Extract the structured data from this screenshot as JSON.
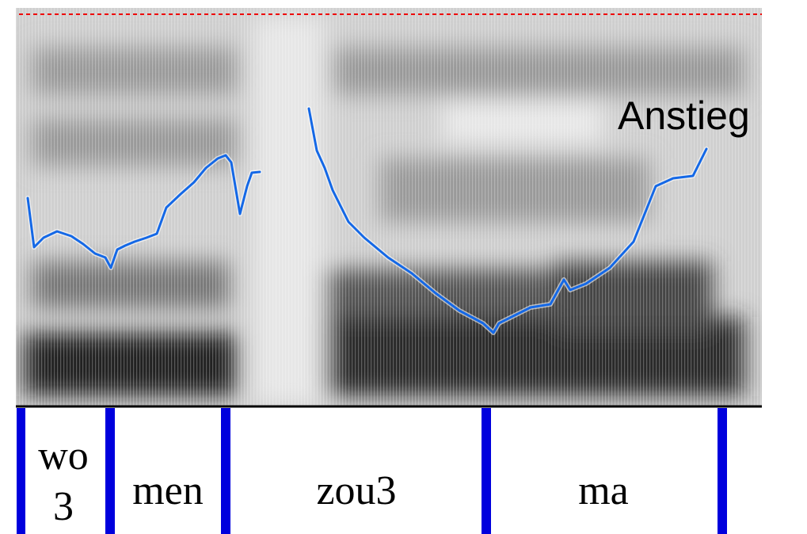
{
  "annotation": "Anstieg",
  "tier": {
    "segments": [
      [
        "wo",
        "3"
      ],
      [
        "men"
      ],
      [
        "zou3"
      ],
      [
        "ma"
      ]
    ]
  }
}
